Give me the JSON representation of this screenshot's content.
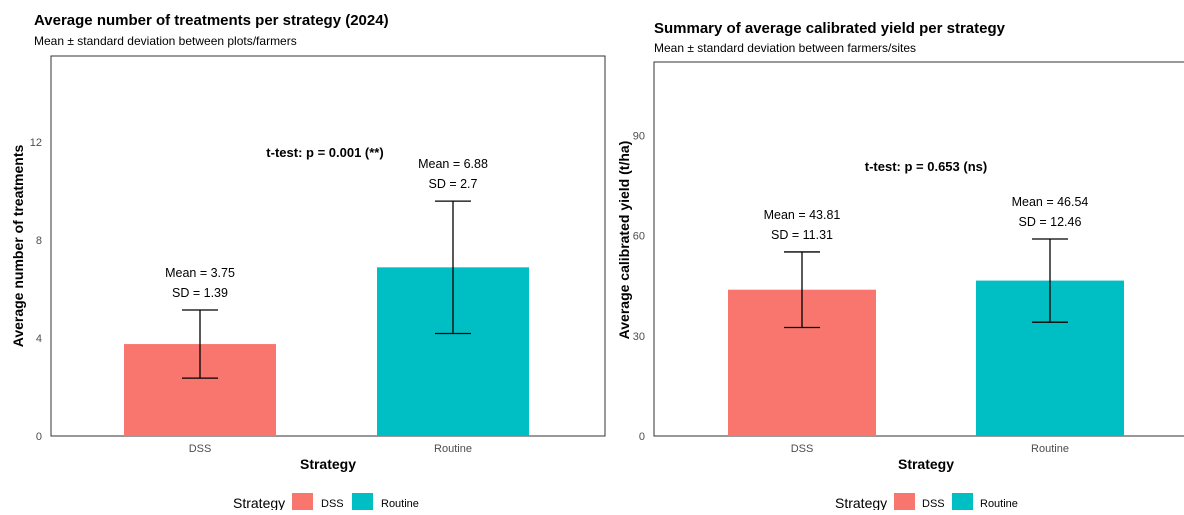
{
  "chart_data": [
    {
      "type": "bar",
      "title": "Average number of treatments per strategy (2024)",
      "subtitle": "Mean ± standard deviation between plots/farmers",
      "xlabel": "Strategy",
      "ylabel": "Average number of treatments",
      "categories": [
        "DSS",
        "Routine"
      ],
      "values": [
        3.75,
        6.88
      ],
      "sd": [
        1.39,
        2.7
      ],
      "bar_labels": [
        [
          "Mean = 3.75",
          "SD = 1.39"
        ],
        [
          "Mean = 6.88",
          "SD = 2.7"
        ]
      ],
      "annotation": "t-test: p = 0.001 (**)",
      "ylim": [
        0,
        15.5
      ],
      "yticks": [
        0,
        4,
        8,
        12
      ],
      "colors": [
        "#F8766D",
        "#00BFC4"
      ],
      "legend": {
        "title": "Strategy",
        "entries": [
          "DSS",
          "Routine"
        ],
        "position": "bottom"
      },
      "grid": false
    },
    {
      "type": "bar",
      "title": "Summary of average calibrated yield per strategy",
      "subtitle": "Mean ± standard deviation between farmers/sites",
      "xlabel": "Strategy",
      "ylabel": "Average calibrated yield (t/ha)",
      "categories": [
        "DSS",
        "Routine"
      ],
      "values": [
        43.81,
        46.54
      ],
      "sd": [
        11.31,
        12.46
      ],
      "bar_labels": [
        [
          "Mean = 43.81",
          "SD = 11.31"
        ],
        [
          "Mean = 46.54",
          "SD = 12.46"
        ]
      ],
      "annotation": "t-test: p = 0.653 (ns)",
      "ylim": [
        0,
        112
      ],
      "yticks": [
        0,
        30,
        60,
        90
      ],
      "colors": [
        "#F8766D",
        "#00BFC4"
      ],
      "legend": {
        "title": "Strategy",
        "entries": [
          "DSS",
          "Routine"
        ],
        "position": "bottom"
      },
      "grid": false
    }
  ]
}
